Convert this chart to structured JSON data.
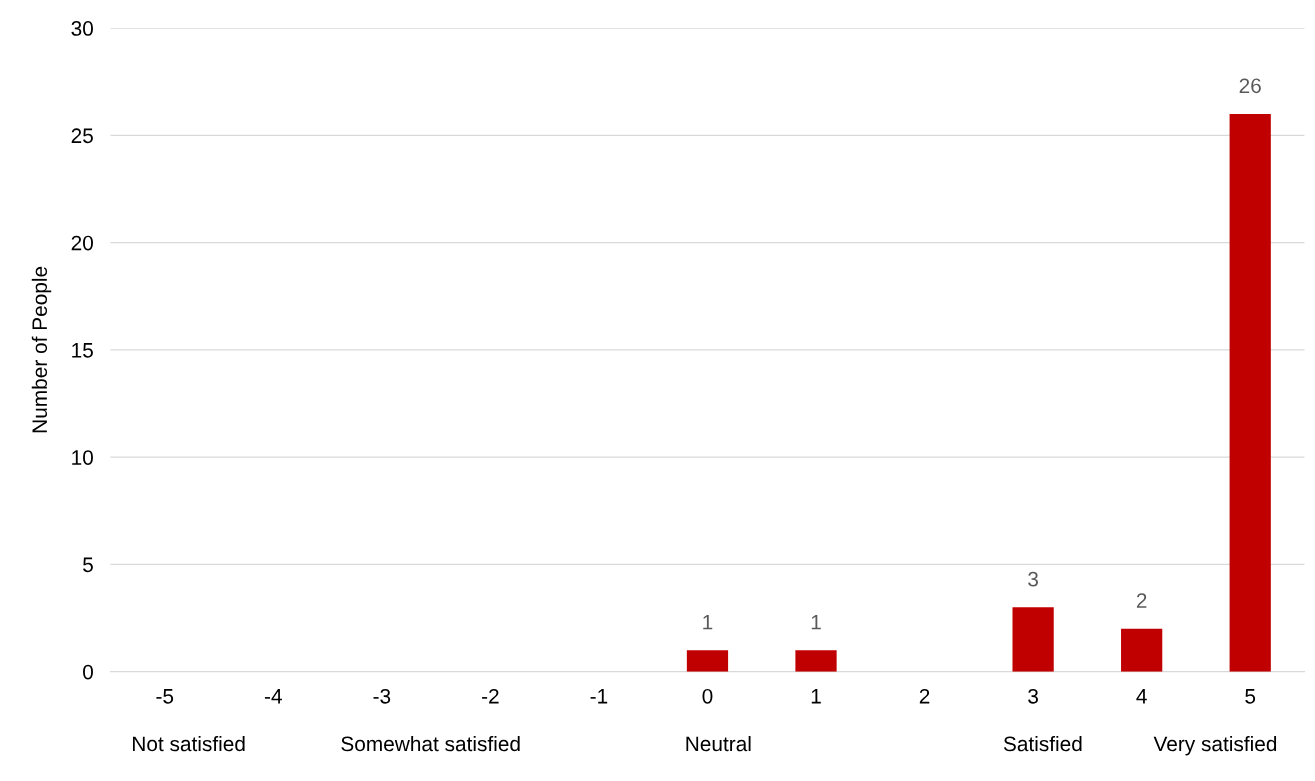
{
  "chart_data": {
    "type": "bar",
    "ylabel": "Number of People",
    "categories": [
      "-5",
      "-4",
      "-3",
      "-2",
      "-1",
      "0",
      "1",
      "2",
      "3",
      "4",
      "5"
    ],
    "values": [
      0,
      0,
      0,
      0,
      0,
      1,
      1,
      0,
      3,
      2,
      26
    ],
    "value_labels": [
      null,
      null,
      null,
      null,
      null,
      "1",
      "1",
      null,
      "3",
      "2",
      "26"
    ],
    "color": "#c00000",
    "ylim": [
      0,
      30
    ],
    "yticks": [
      0,
      5,
      10,
      15,
      20,
      25,
      30
    ],
    "grid": "y",
    "legend": false,
    "annotations": [
      "Not satisfied",
      "Somewhat satisfied",
      "Neutral",
      "Satisfied",
      "Very satisfied"
    ]
  }
}
